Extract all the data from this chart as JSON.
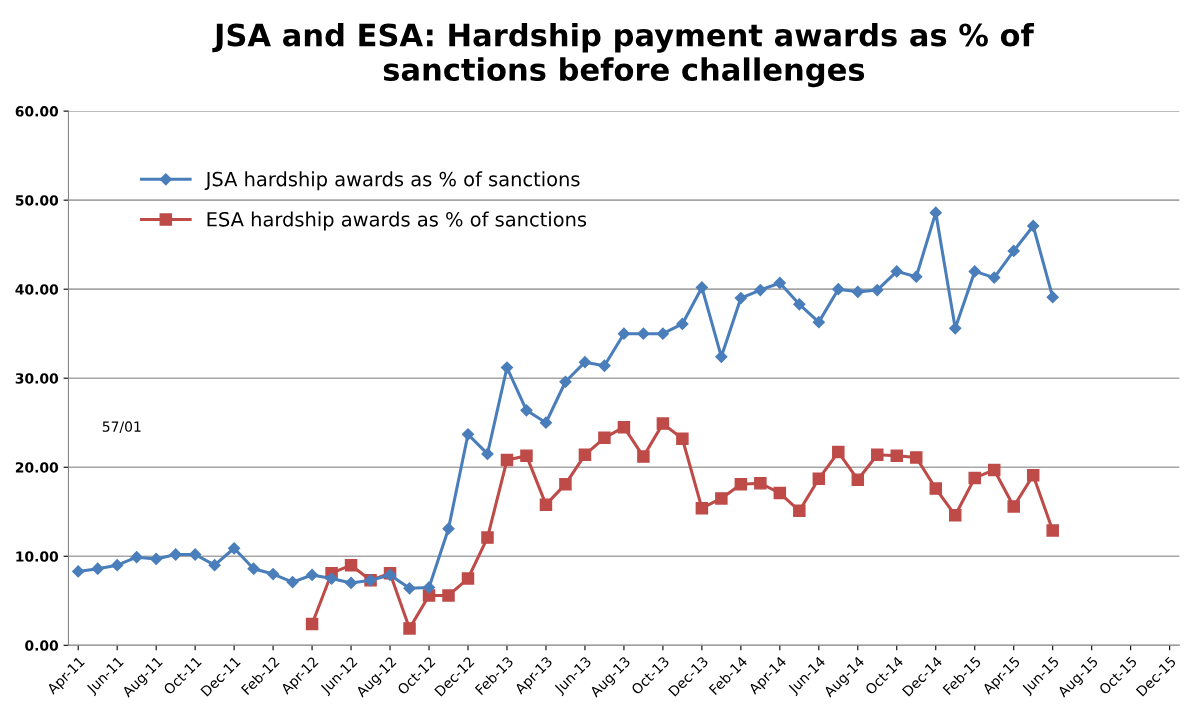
{
  "chart_data": {
    "type": "line",
    "title": "JSA and ESA: Hardship payment awards as % of\nsanctions before challenges",
    "categories": [
      "Apr-11",
      null,
      "Jun-11",
      null,
      "Aug-11",
      null,
      "Oct-11",
      null,
      "Dec-11",
      null,
      "Feb-12",
      null,
      "Apr-12",
      null,
      "Jun-12",
      null,
      "Aug-12",
      null,
      "Oct-12",
      null,
      "Dec-12",
      null,
      "Feb-13",
      null,
      "Apr-13",
      null,
      "Jun-13",
      null,
      "Aug-13",
      null,
      "Oct-13",
      null,
      "Dec-13",
      null,
      "Feb-14",
      null,
      "Apr-14",
      null,
      "Jun-14",
      null,
      "Aug-14",
      null,
      "Oct-14",
      null,
      "Dec-14",
      null,
      "Feb-15",
      null,
      "Apr-15",
      null,
      "Jun-15",
      null,
      "Aug-15",
      null,
      "Oct-15",
      null,
      "Dec-15"
    ],
    "series": [
      {
        "name": "JSA hardship awards as % of sanctions",
        "color": "#4a7ebb",
        "marker": "diamond",
        "values": [
          8.3,
          8.6,
          9.0,
          9.9,
          9.7,
          10.2,
          10.2,
          9.0,
          10.9,
          8.6,
          8.0,
          7.1,
          7.9,
          7.5,
          7.0,
          7.3,
          7.9,
          6.4,
          6.5,
          13.1,
          23.7,
          21.5,
          31.2,
          26.4,
          25.0,
          29.6,
          31.8,
          31.4,
          35.0,
          35.0,
          35.0,
          36.1,
          40.2,
          32.4,
          39.0,
          39.9,
          40.7,
          38.3,
          36.3,
          40.0,
          39.7,
          39.9,
          42.0,
          41.4,
          48.6,
          35.6,
          42.0,
          41.3,
          44.3,
          47.1,
          39.1,
          null,
          null,
          null,
          null,
          null,
          null
        ]
      },
      {
        "name": "ESA hardship awards as % of sanctions",
        "color": "#be4b48",
        "marker": "square",
        "values": [
          null,
          null,
          null,
          null,
          null,
          null,
          null,
          null,
          null,
          null,
          null,
          null,
          2.4,
          8.1,
          9.0,
          7.3,
          8.1,
          1.9,
          5.6,
          5.6,
          7.5,
          12.1,
          20.8,
          21.3,
          15.8,
          18.1,
          21.4,
          23.3,
          24.5,
          21.2,
          24.9,
          23.2,
          15.4,
          16.5,
          18.1,
          18.2,
          17.1,
          15.1,
          18.7,
          21.7,
          18.6,
          21.4,
          21.3,
          21.1,
          17.6,
          14.6,
          18.8,
          19.7,
          15.6,
          19.1,
          12.9,
          null,
          null,
          null,
          null,
          null,
          null
        ]
      }
    ],
    "ylim": [
      0,
      60
    ],
    "yticks": [
      {
        "value": 0,
        "label": "0.00"
      },
      {
        "value": 10,
        "label": "10.00"
      },
      {
        "value": 20,
        "label": "20.00"
      },
      {
        "value": 30,
        "label": "30.00"
      },
      {
        "value": 40,
        "label": "40.00"
      },
      {
        "value": 50,
        "label": "50.00"
      },
      {
        "value": 60,
        "label": "60.00"
      }
    ],
    "grid": "y",
    "legend": "top left",
    "line_style": "solid",
    "annotations": [
      "57/01"
    ]
  }
}
